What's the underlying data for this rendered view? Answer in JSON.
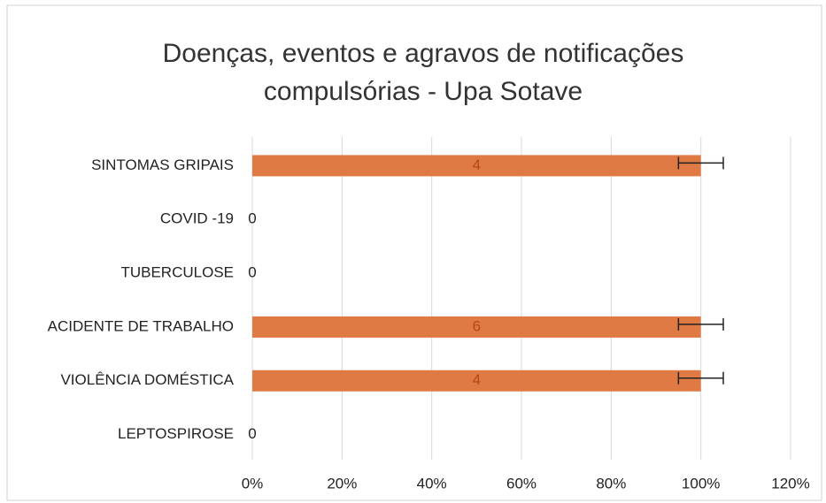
{
  "chart_data": {
    "type": "percent_stacked_barh",
    "title": [
      "Doenças, eventos e agravos de notificações",
      "compulsórias - Upa Sotave"
    ],
    "categories": [
      "SINTOMAS GRIPAIS",
      "COVID -19",
      "TUBERCULOSE",
      "ACIDENTE DE TRABALHO",
      "VIOLÊNCIA DOMÉSTICA",
      "LEPTOSPIROSE"
    ],
    "series": [
      {
        "color": "#e07a45",
        "values": [
          4,
          0,
          0,
          6,
          4,
          0
        ]
      }
    ],
    "error_percent": 5,
    "xlim": [
      0,
      120
    ],
    "xticks": [
      {
        "value": 0,
        "label": "0%"
      },
      {
        "value": 20,
        "label": "20%"
      },
      {
        "value": 40,
        "label": "40%"
      },
      {
        "value": 60,
        "label": "60%"
      },
      {
        "value": 80,
        "label": "80%"
      },
      {
        "value": 100,
        "label": "100%"
      },
      {
        "value": 120,
        "label": "120%"
      }
    ],
    "grid": true
  }
}
